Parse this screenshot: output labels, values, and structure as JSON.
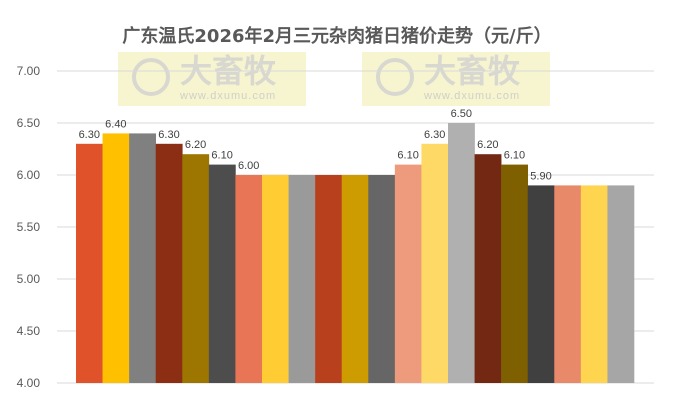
{
  "chart_data": {
    "type": "bar",
    "title": "广东温氏2026年2月三元杂肉猪日猪价走势（元/斤）",
    "ylim": [
      4.0,
      7.0
    ],
    "yticks": [
      "4.00",
      "4.50",
      "5.00",
      "5.50",
      "6.00",
      "6.50",
      "7.00"
    ],
    "grid": true,
    "values": [
      6.3,
      6.4,
      6.4,
      6.3,
      6.2,
      6.1,
      6.0,
      6.0,
      6.0,
      6.0,
      6.0,
      6.0,
      6.1,
      6.3,
      6.5,
      6.2,
      6.1,
      5.9,
      5.9,
      5.9,
      5.9
    ],
    "labels": [
      "6.30",
      "6.40",
      null,
      "6.30",
      "6.20",
      "6.10",
      "6.00",
      null,
      null,
      null,
      null,
      null,
      "6.10",
      "6.30",
      "6.50",
      "6.20",
      "6.10",
      "5.90",
      null,
      null,
      null
    ],
    "colors": [
      "#E0532A",
      "#FFC000",
      "#808080",
      "#8B2E14",
      "#9C7600",
      "#4D4D4D",
      "#E87555",
      "#FFCC33",
      "#9A9A9A",
      "#B8401C",
      "#CC9C00",
      "#666666",
      "#EE9A7C",
      "#FFD966",
      "#B0B0B0",
      "#722812",
      "#7F6000",
      "#404040",
      "#E8896A",
      "#FFD550",
      "#A6A6A6"
    ]
  },
  "watermark": {
    "logo_text": "大畜牧",
    "url": "www.dxumu.com"
  }
}
